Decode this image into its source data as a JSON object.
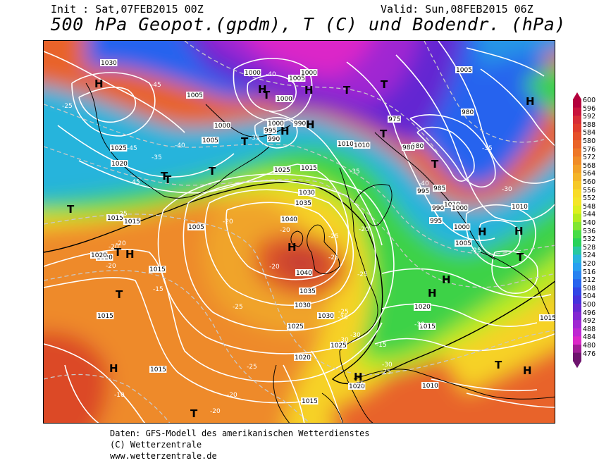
{
  "header": {
    "init": "Init : Sat,07FEB2015 00Z",
    "valid": "Valid: Sun,08FEB2015 06Z",
    "title": "500 hPa Geopot.(gpdm), T (C) und Bodendr. (hPa)"
  },
  "legend": {
    "values": [
      "600",
      "596",
      "592",
      "588",
      "584",
      "580",
      "576",
      "572",
      "568",
      "564",
      "560",
      "556",
      "552",
      "548",
      "544",
      "540",
      "536",
      "532",
      "528",
      "524",
      "520",
      "516",
      "512",
      "508",
      "504",
      "500",
      "496",
      "492",
      "488",
      "484",
      "480",
      "476"
    ],
    "colors": [
      "#b4003c",
      "#c8143c",
      "#d72d36",
      "#e03c2c",
      "#e6502a",
      "#ea6428",
      "#ee7828",
      "#f08c28",
      "#f2a028",
      "#f4b428",
      "#f6c828",
      "#f8dc28",
      "#f4e628",
      "#dcf01e",
      "#b4ec1e",
      "#82e632",
      "#46dc46",
      "#28d25a",
      "#28c8a0",
      "#28b4dc",
      "#28a0f0",
      "#2882f0",
      "#2864ee",
      "#3246e6",
      "#4632dc",
      "#6428d2",
      "#8228d2",
      "#a028d2",
      "#be28d2",
      "#dc28c8",
      "#a01e96",
      "#6e146e"
    ]
  },
  "map": {
    "pressure_labels": [
      "1030",
      "1005",
      "1000",
      "1000",
      "1005",
      "1000",
      "1005",
      "1000",
      "1000",
      "995",
      "990",
      "990",
      "980",
      "975",
      "980",
      "1005",
      "1010",
      "1025",
      "1020",
      "1015",
      "1015",
      "1020",
      "1025",
      "1030",
      "1035",
      "1040",
      "1040",
      "1035",
      "1030",
      "1030",
      "1025",
      "1025",
      "1020",
      "1020",
      "1015",
      "1015",
      "1015",
      "1010",
      "1005",
      "1000",
      "995",
      "990",
      "985",
      "980",
      "1010",
      "1005",
      "1010",
      "1015",
      "1020",
      "1015",
      "1015",
      "1010",
      "1015",
      "1000",
      "995",
      "1015",
      "1020"
    ],
    "temp_labels": [
      "-45",
      "-25",
      "-45",
      "-35",
      "-45",
      "-40",
      "-35",
      "-40",
      "-35",
      "-40",
      "-35",
      "-30",
      "-25",
      "-20",
      "-20",
      "-20",
      "-20",
      "-25",
      "-30",
      "-35",
      "-25",
      "-20",
      "-25",
      "-25",
      "-20",
      "-15",
      "-20",
      "-25",
      "-30",
      "-25",
      "-15",
      "-10",
      "-20",
      "-25",
      "-35",
      "-30",
      "-25",
      "-30",
      "-20"
    ],
    "highs_lows": [
      "H",
      "H",
      "H",
      "H",
      "H",
      "H",
      "H",
      "H",
      "H",
      "H",
      "H",
      "H",
      "H",
      "H",
      "H",
      "H",
      "T",
      "T",
      "T",
      "T",
      "T",
      "T",
      "T",
      "T",
      "T",
      "T",
      "T",
      "T",
      "T",
      "T",
      "T"
    ]
  },
  "footer": {
    "line1": "Daten: GFS-Modell des amerikanischen Wetterdienstes",
    "line2": "(C) Wetterzentrale",
    "line3": "www.wetterzentrale.de"
  }
}
